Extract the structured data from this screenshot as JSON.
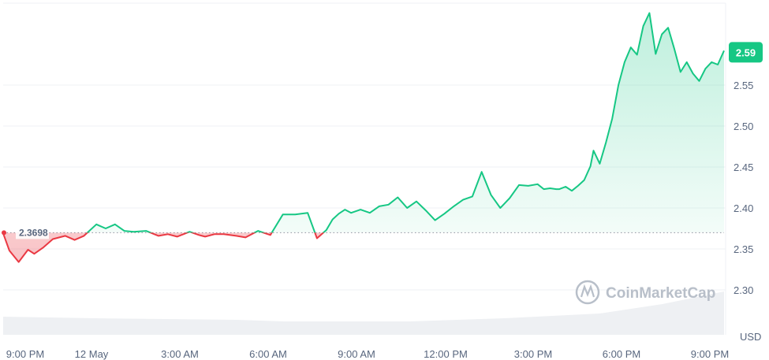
{
  "chart_data": {
    "type": "line",
    "x_tick_labels": [
      "9:00 PM",
      "12 May",
      "3:00 AM",
      "6:00 AM",
      "9:00 AM",
      "12:00 PM",
      "3:00 PM",
      "6:00 PM",
      "9:00 PM"
    ],
    "y_tick_labels": [
      "2.30",
      "2.35",
      "2.40",
      "2.45",
      "2.50",
      "2.55"
    ],
    "ylim": [
      2.25,
      2.64
    ],
    "y_unit_label": "USD",
    "baseline": {
      "value": 2.3698,
      "label": "2.3698"
    },
    "current_price": {
      "value": 2.59,
      "label": "2.59"
    },
    "colors": {
      "up": "#16c784",
      "down": "#ea3943",
      "current_badge": "#16c784"
    },
    "grid": "horizontal",
    "watermark": "CoinMarketCap",
    "series": [
      {
        "x": [
          0,
          0.2,
          0.5,
          0.8,
          1.0,
          1.3,
          1.6,
          2.0,
          2.3,
          2.6,
          3.0,
          3.3,
          3.6,
          3.9,
          4.2,
          4.6,
          5.0,
          5.3,
          5.6,
          6.0,
          6.3,
          6.5,
          6.8,
          7.1,
          7.5,
          7.8,
          8.2,
          8.6,
          9.0,
          9.4,
          9.8,
          10.1,
          10.4,
          10.6,
          10.8,
          11.0,
          11.2,
          11.5,
          11.8,
          12.1,
          12.4,
          12.7,
          13.0,
          13.3,
          13.6,
          13.9,
          14.2,
          14.5,
          14.8,
          15.1,
          15.4,
          15.7,
          16.0,
          16.3,
          16.6,
          16.9,
          17.2,
          17.4,
          17.6,
          17.8,
          17.9,
          18.1,
          18.3,
          18.5,
          18.7,
          18.9,
          19.0,
          19.2,
          19.4,
          19.6,
          19.8,
          20.0,
          20.2,
          20.4,
          20.6,
          20.8,
          21.0,
          21.2,
          21.4,
          21.6,
          21.8,
          22.0,
          22.2,
          22.4,
          22.6,
          22.8,
          23.0,
          23.2
        ],
        "values": [
          2.369,
          2.348,
          2.334,
          2.349,
          2.344,
          2.352,
          2.362,
          2.366,
          2.361,
          2.366,
          2.38,
          2.375,
          2.38,
          2.372,
          2.371,
          2.372,
          2.366,
          2.368,
          2.365,
          2.371,
          2.367,
          2.365,
          2.368,
          2.368,
          2.366,
          2.364,
          2.372,
          2.367,
          2.392,
          2.392,
          2.394,
          2.363,
          2.373,
          2.386,
          2.393,
          2.398,
          2.394,
          2.398,
          2.394,
          2.402,
          2.404,
          2.413,
          2.4,
          2.408,
          2.397,
          2.385,
          2.393,
          2.402,
          2.41,
          2.414,
          2.444,
          2.416,
          2.4,
          2.412,
          2.428,
          2.427,
          2.429,
          2.423,
          2.424,
          2.423,
          2.423,
          2.426,
          2.421,
          2.427,
          2.434,
          2.451,
          2.47,
          2.454,
          2.48,
          2.509,
          2.55,
          2.578,
          2.596,
          2.587,
          2.622,
          2.638,
          2.588,
          2.612,
          2.62,
          2.594,
          2.566,
          2.578,
          2.564,
          2.555,
          2.57,
          2.578,
          2.575,
          2.592
        ]
      }
    ]
  }
}
